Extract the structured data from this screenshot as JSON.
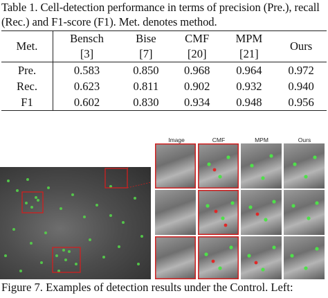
{
  "caption_top": "Table 1. Cell-detection performance in terms of precision (Pre.), recall (Rec.) and F1-score (F1). Met. denotes method.",
  "table": {
    "corner": "Met.",
    "methods": [
      {
        "name": "Bensch",
        "ref": "[3]"
      },
      {
        "name": "Bise",
        "ref": "[7]"
      },
      {
        "name": "CMF",
        "ref": "[20]"
      },
      {
        "name": "MPM",
        "ref": "[21]"
      },
      {
        "name": "Ours",
        "ref": ""
      }
    ],
    "rows": [
      {
        "label": "Pre.",
        "values": [
          "0.583",
          "0.850",
          "0.968",
          "0.964",
          "0.972"
        ]
      },
      {
        "label": "Rec.",
        "values": [
          "0.623",
          "0.811",
          "0.902",
          "0.932",
          "0.940"
        ]
      },
      {
        "label": "F1",
        "values": [
          "0.602",
          "0.830",
          "0.934",
          "0.948",
          "0.956"
        ]
      }
    ]
  },
  "figure": {
    "column_labels": [
      "Image",
      "CMF",
      "MPM",
      "Ours"
    ]
  },
  "fig_caption": "Figure 7. Examples of detection results under the Control. Left:"
}
